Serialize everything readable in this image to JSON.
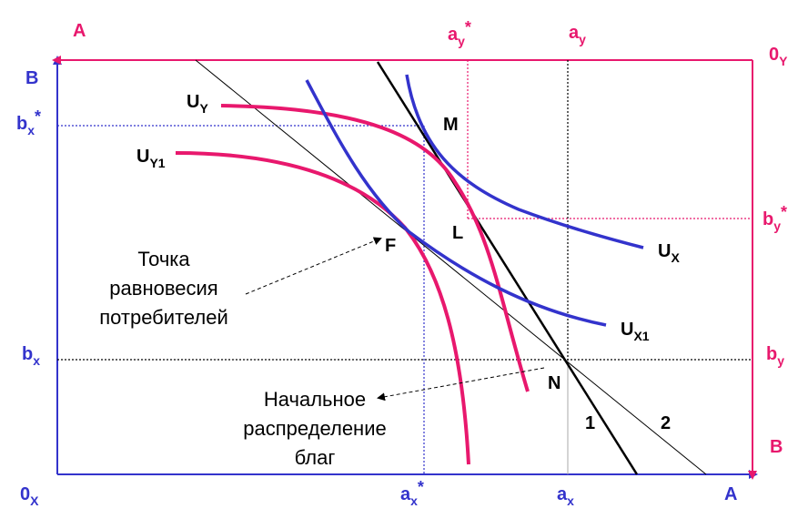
{
  "colors": {
    "blue": "#3333CC",
    "pink": "#E8186D",
    "black": "#000000",
    "gray": "#999999"
  },
  "corner_labels": {
    "top_left_A": "A",
    "left_B": "B",
    "top_right_0": "0",
    "top_right_0_sub": "Y",
    "bottom_left_0": "0",
    "bottom_left_0_sub": "X",
    "bottom_right_A": "A",
    "bottom_right_B": "B"
  },
  "axis_labels": {
    "ay_star": "a",
    "ay_star_sub": "y",
    "ay_star_sup": "*",
    "ay": "a",
    "ay_sub": "y",
    "bx_star": "b",
    "bx_star_sub": "x",
    "bx_star_sup": "*",
    "bx": "b",
    "bx_sub": "x",
    "by_star": "b",
    "by_star_sub": "y",
    "by_star_sup": "*",
    "by": "b",
    "by_sub": "y",
    "ax_star": "a",
    "ax_star_sub": "x",
    "ax_star_sup": "*",
    "ax": "a",
    "ax_sub": "x"
  },
  "curve_labels": {
    "uy": "U",
    "uy_sub": "Y",
    "uy1": "U",
    "uy1_sub": "Y1",
    "ux": "U",
    "ux_sub": "X",
    "ux1": "U",
    "ux1_sub": "X1"
  },
  "points": {
    "M": "M",
    "L": "L",
    "F": "F",
    "N": "N"
  },
  "lines": {
    "line1": "1",
    "line2": "2"
  },
  "annotations": {
    "equilibrium_line1": "Точка",
    "equilibrium_line2": "равновесия",
    "equilibrium_line3": "потребителей",
    "initial_line1": "Начальное",
    "initial_line2": "распределение",
    "initial_line3": "благ"
  }
}
